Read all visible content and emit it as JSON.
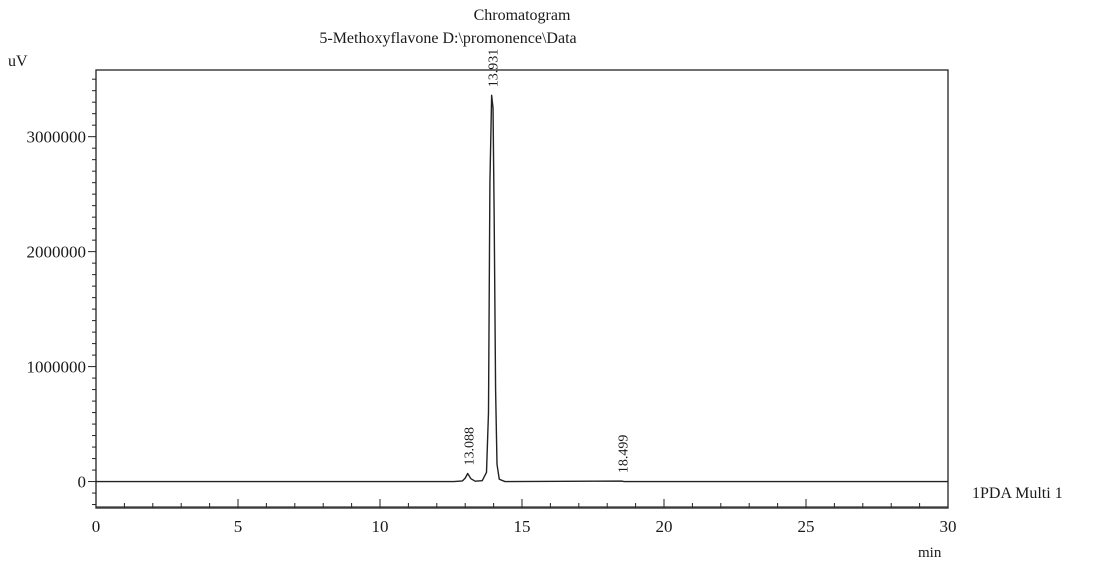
{
  "chart_data": {
    "type": "line",
    "title": "Chromatogram",
    "subtitle": "5-Methoxyflavone D:\\promonence\\Data",
    "ylabel": "uV",
    "xlabel": "min",
    "xlim": [
      0,
      30
    ],
    "ylim": [
      -230000,
      3580000
    ],
    "x_ticks": [
      0,
      5,
      10,
      15,
      20,
      25,
      30
    ],
    "y_ticks": [
      0,
      1000000,
      2000000,
      3000000
    ],
    "grid": false,
    "series": [
      {
        "name": "1PDA Multi 1",
        "points": [
          [
            0,
            0
          ],
          [
            12.6,
            0
          ],
          [
            12.9,
            5000
          ],
          [
            13.0,
            30000
          ],
          [
            13.088,
            70000
          ],
          [
            13.2,
            25000
          ],
          [
            13.35,
            3000
          ],
          [
            13.6,
            8000
          ],
          [
            13.75,
            80000
          ],
          [
            13.82,
            600000
          ],
          [
            13.87,
            2600000
          ],
          [
            13.931,
            3360000
          ],
          [
            13.98,
            3250000
          ],
          [
            14.02,
            2300000
          ],
          [
            14.07,
            800000
          ],
          [
            14.12,
            150000
          ],
          [
            14.2,
            20000
          ],
          [
            14.4,
            0
          ],
          [
            18.499,
            4000
          ],
          [
            18.6,
            0
          ],
          [
            30,
            0
          ]
        ]
      }
    ],
    "peak_labels": [
      {
        "x": 13.088,
        "y": 70000,
        "label": "13.088"
      },
      {
        "x": 13.931,
        "y": 3360000,
        "label": "13.931"
      },
      {
        "x": 18.499,
        "y": 4000,
        "label": "18.499"
      }
    ],
    "bottom_line_y": -220000
  }
}
